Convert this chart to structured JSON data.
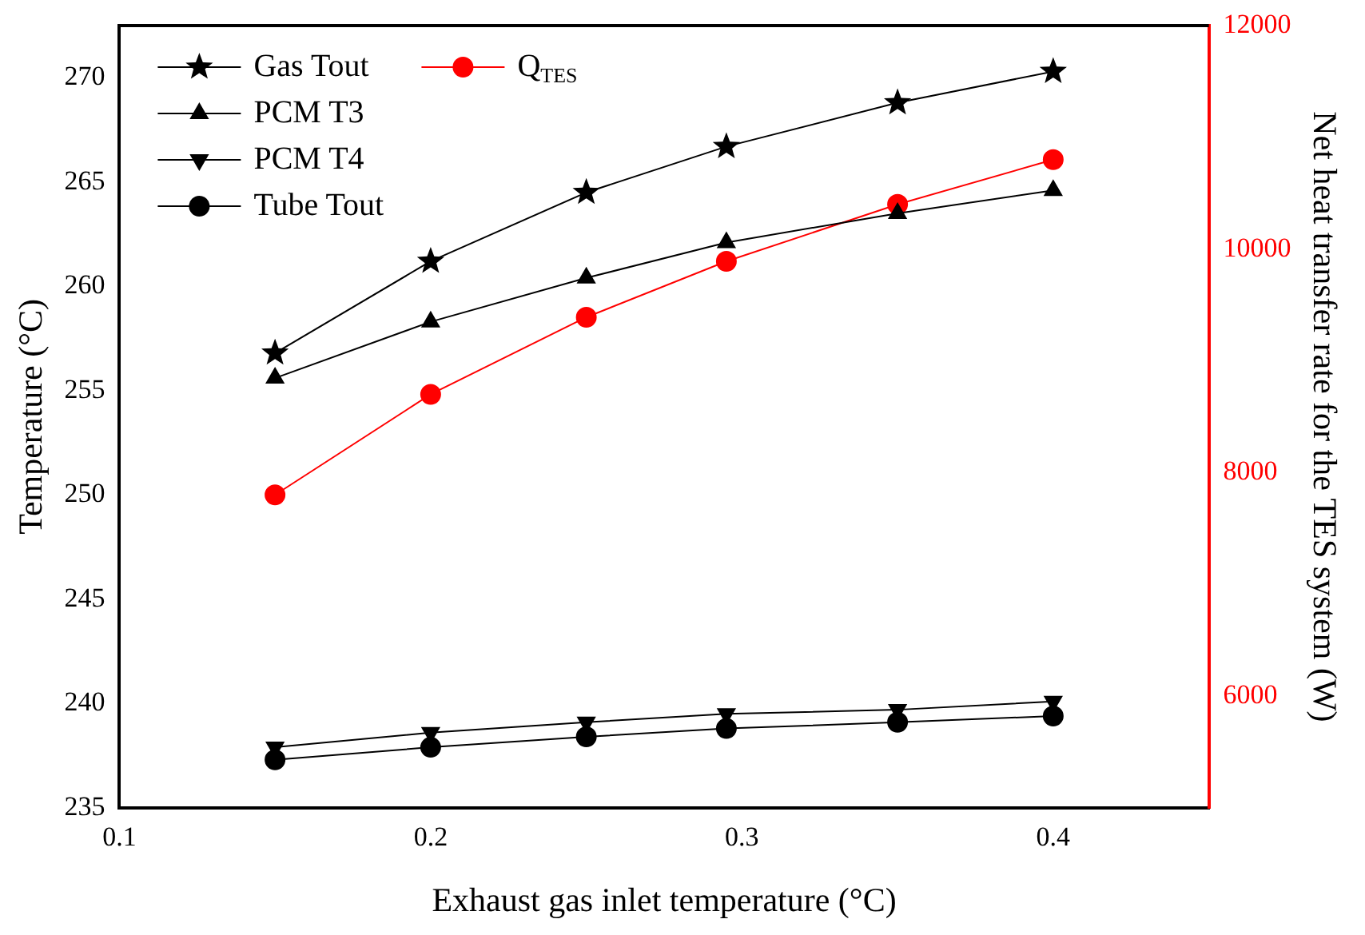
{
  "chart_data": {
    "type": "line",
    "xlabel": "Exhaust gas inlet temperature (°C)",
    "ylabel": "Temperature (°C)",
    "y2label": "Net heat transfer rate for the TES system (W)",
    "x": [
      0.15,
      0.2,
      0.25,
      0.295,
      0.35,
      0.4
    ],
    "series": [
      {
        "name": "Gas Tout",
        "color": "#000000",
        "marker": "star",
        "values": [
          256.8,
          261.2,
          264.5,
          266.7,
          268.8,
          270.3
        ]
      },
      {
        "name": "PCM T3",
        "color": "#000000",
        "marker": "triangle",
        "values": [
          255.6,
          258.3,
          260.4,
          262.1,
          263.5,
          264.6
        ]
      },
      {
        "name": "PCM T4",
        "color": "#000000",
        "marker": "triangle_down",
        "values": [
          237.9,
          238.6,
          239.1,
          239.5,
          239.7,
          240.1
        ]
      },
      {
        "name": "Tube Tout",
        "color": "#000000",
        "marker": "circle",
        "values": [
          237.3,
          237.9,
          238.4,
          238.8,
          239.1,
          239.4
        ]
      },
      {
        "name": "Q$_{TES}$",
        "color": "#ff0000",
        "marker": "circle",
        "axis": "y2",
        "values": [
          7800,
          8700,
          9390,
          9890,
          10400,
          10800
        ]
      }
    ],
    "xlim": [
      0.1,
      0.45
    ],
    "xticks": [
      0.1,
      0.2,
      0.3,
      0.4
    ],
    "ylim": [
      235,
      272.5
    ],
    "yticks": [
      235,
      240,
      245,
      250,
      255,
      260,
      265,
      270
    ],
    "y2lim": [
      5000,
      12000
    ],
    "y2ticks": [
      6000,
      8000,
      10000,
      12000
    ],
    "grid": false,
    "legend": "top left",
    "line_style": "solid"
  }
}
